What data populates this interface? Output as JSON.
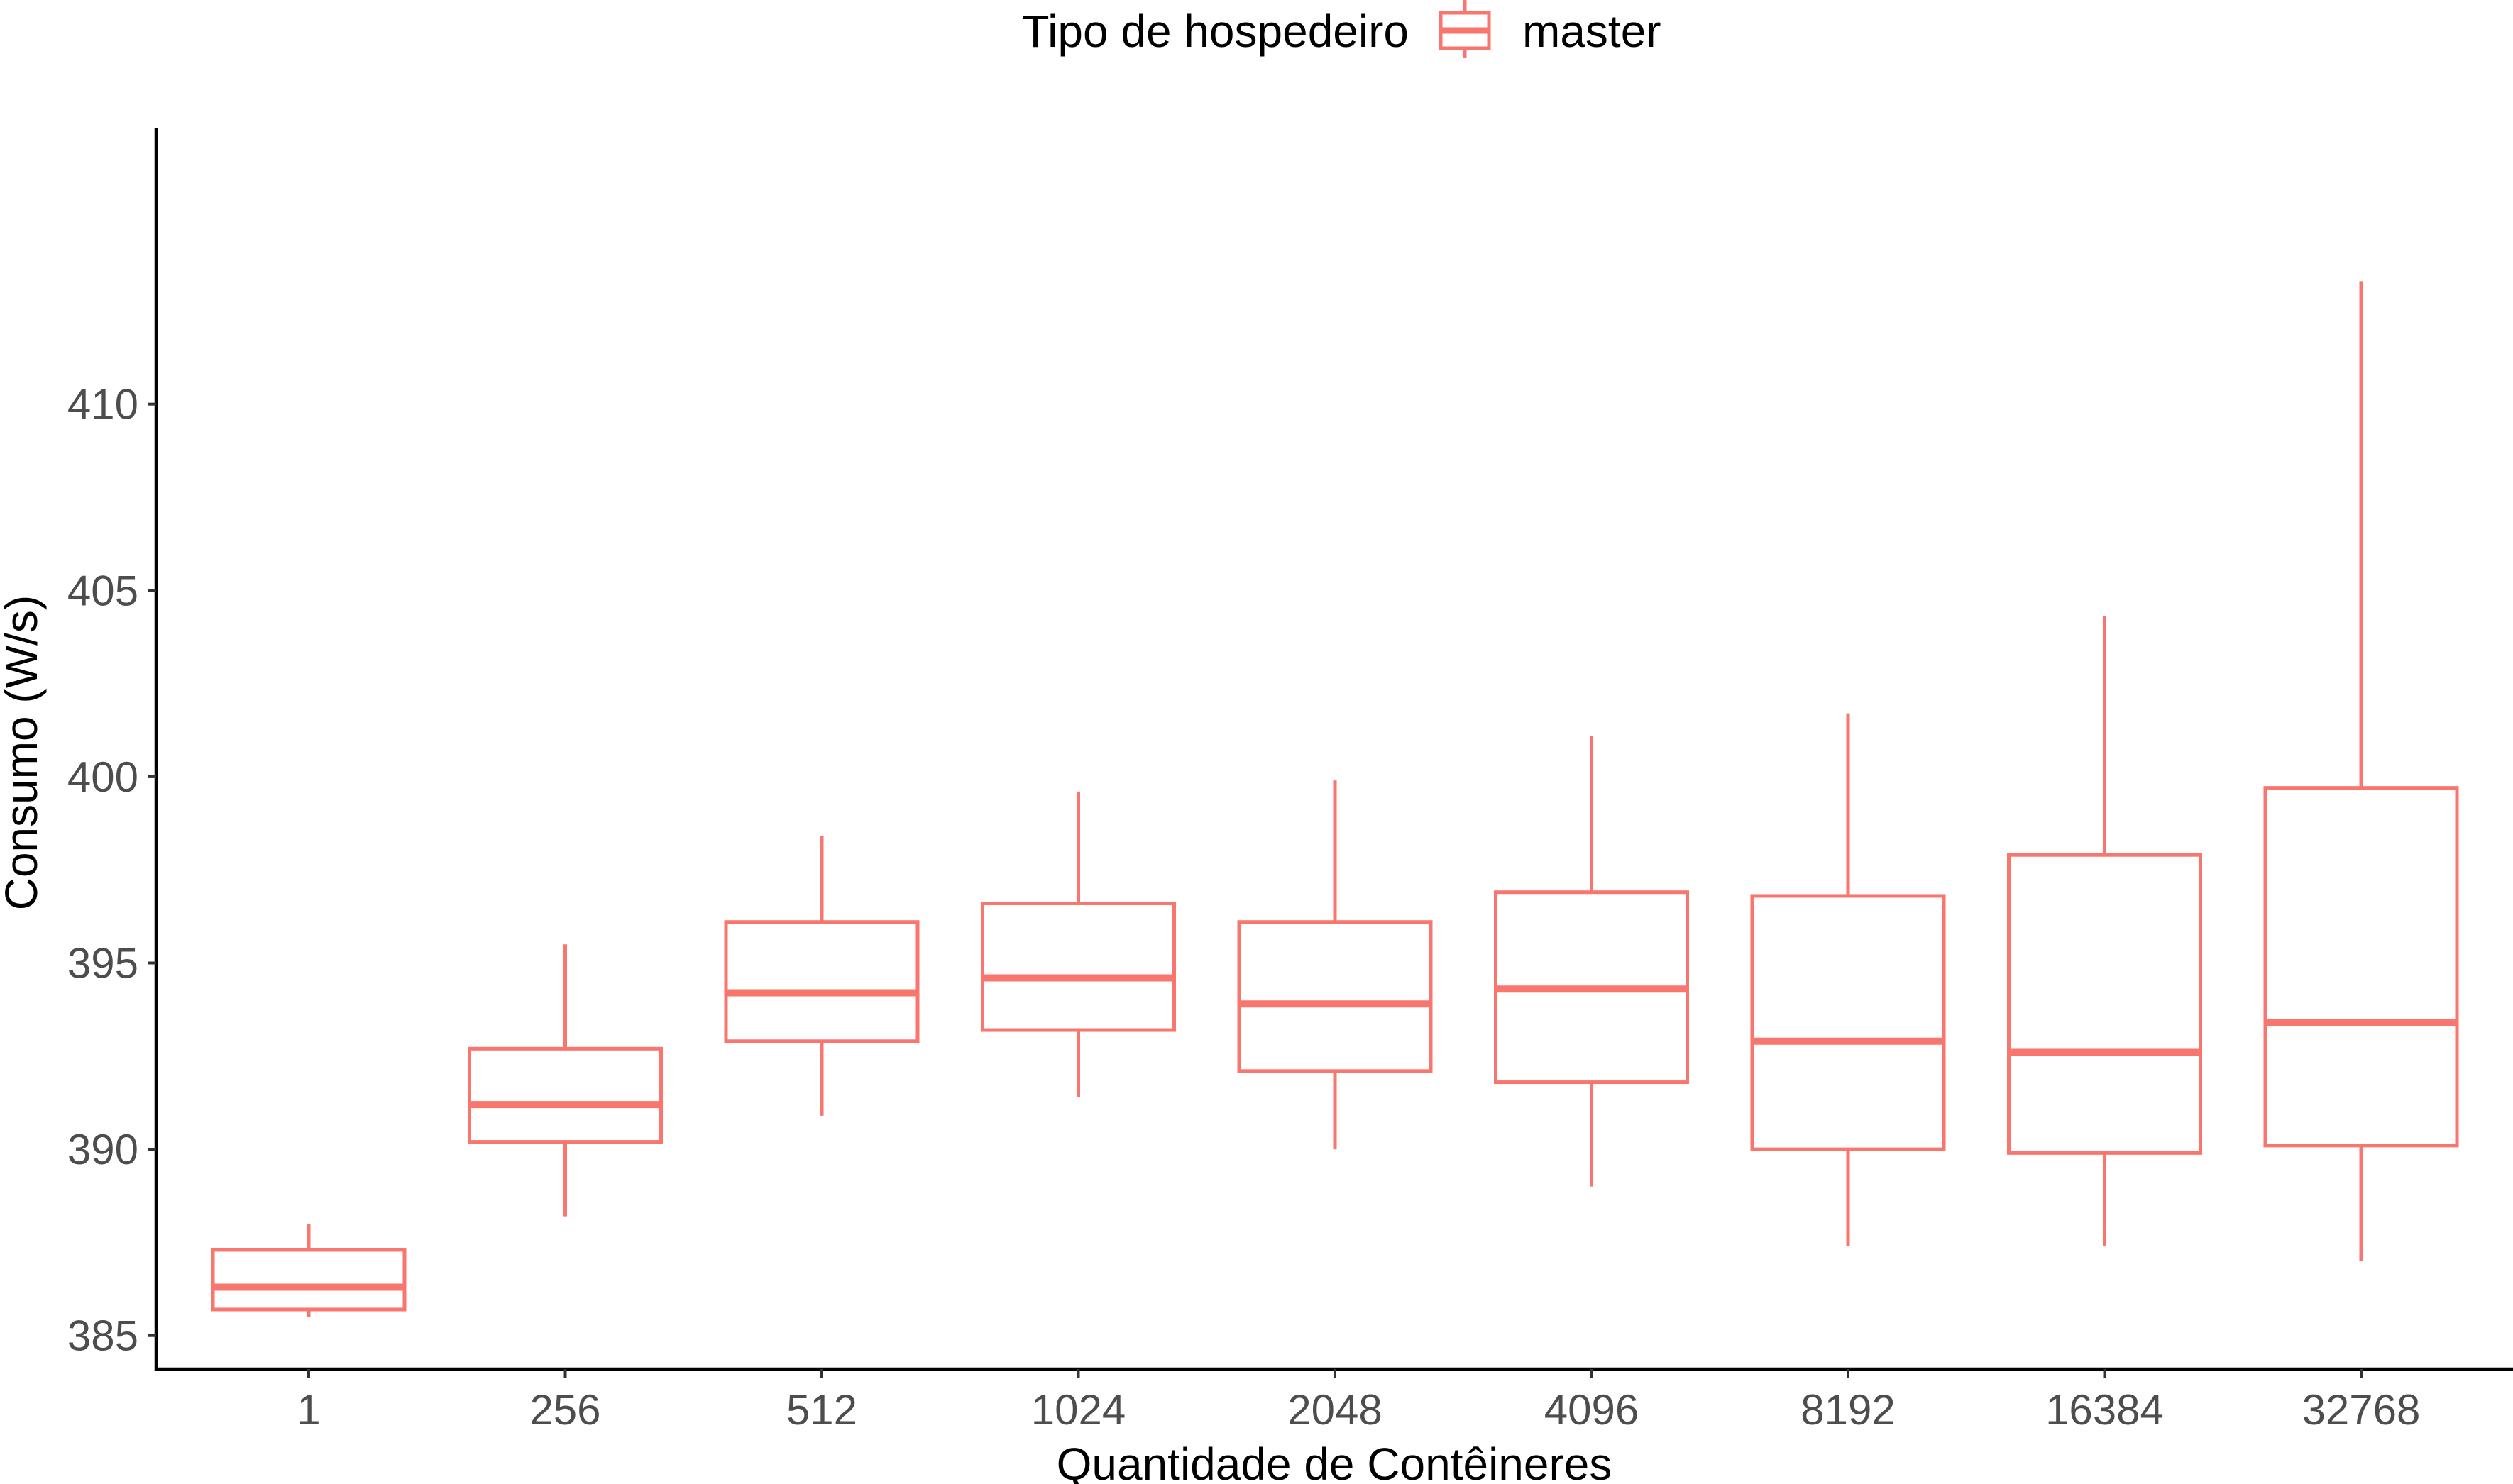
{
  "chart_data": {
    "type": "boxplot",
    "xlabel": "Quantidade de Contêineres",
    "ylabel": "Consumo (W/s)",
    "ylim": [
      384.1,
      417.4
    ],
    "yticks": [
      385,
      390,
      395,
      400,
      405,
      410
    ],
    "grid": false,
    "legend": {
      "position": "top",
      "title": "Tipo de hospedeiro",
      "entries": [
        "master"
      ]
    },
    "series": [
      {
        "name": "master",
        "color": "#F8766D",
        "categories": [
          "1",
          "256",
          "512",
          "1024",
          "2048",
          "4096",
          "8192",
          "16384",
          "32768"
        ],
        "boxes": [
          {
            "category": "1",
            "whisker_low": 385.5,
            "q1": 385.7,
            "median": 386.3,
            "q3": 387.3,
            "whisker_high": 388.0
          },
          {
            "category": "256",
            "whisker_low": 388.2,
            "q1": 390.2,
            "median": 391.2,
            "q3": 392.7,
            "whisker_high": 395.5
          },
          {
            "category": "512",
            "whisker_low": 390.9,
            "q1": 392.9,
            "median": 394.2,
            "q3": 396.1,
            "whisker_high": 398.4
          },
          {
            "category": "1024",
            "whisker_low": 391.4,
            "q1": 393.2,
            "median": 394.6,
            "q3": 396.6,
            "whisker_high": 399.6
          },
          {
            "category": "2048",
            "whisker_low": 390.0,
            "q1": 392.1,
            "median": 393.9,
            "q3": 396.1,
            "whisker_high": 399.9
          },
          {
            "category": "4096",
            "whisker_low": 389.0,
            "q1": 391.8,
            "median": 394.3,
            "q3": 396.9,
            "whisker_high": 401.1
          },
          {
            "category": "8192",
            "whisker_low": 387.4,
            "q1": 390.0,
            "median": 392.9,
            "q3": 396.8,
            "whisker_high": 401.7
          },
          {
            "category": "16384",
            "whisker_low": 387.4,
            "q1": 389.9,
            "median": 392.6,
            "q3": 397.9,
            "whisker_high": 404.3
          },
          {
            "category": "32768",
            "whisker_low": 387.0,
            "q1": 390.1,
            "median": 393.4,
            "q3": 399.7,
            "whisker_high": 413.3
          }
        ]
      }
    ]
  }
}
